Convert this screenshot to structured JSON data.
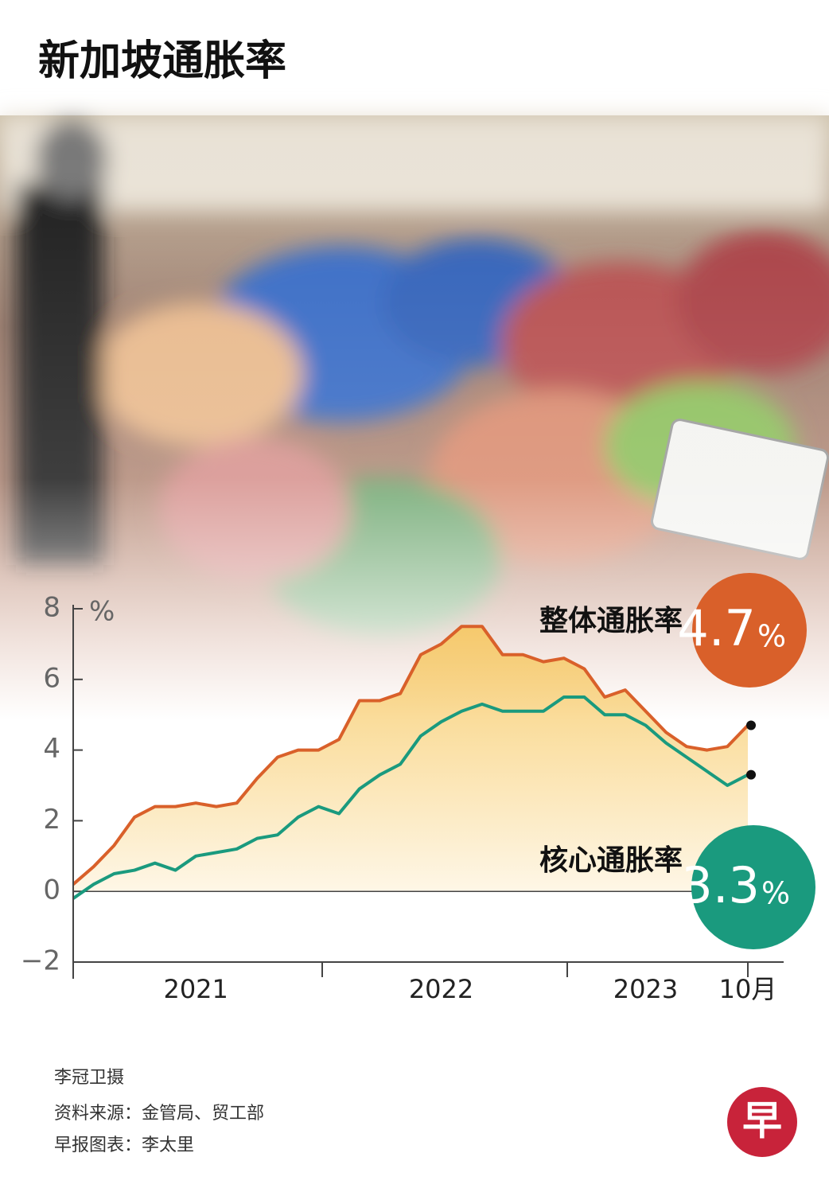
{
  "title": "新加坡通胀率",
  "chart_data": {
    "type": "line",
    "y_unit": "%",
    "categories": [
      null,
      null,
      null,
      null,
      null,
      null,
      "2021",
      null,
      null,
      null,
      null,
      null,
      null,
      null,
      null,
      null,
      null,
      null,
      "2022",
      null,
      null,
      null,
      null,
      null,
      null,
      null,
      null,
      null,
      "2023",
      null,
      null,
      null,
      null,
      "10月"
    ],
    "series": [
      {
        "name": "整体通胀率",
        "color": "#d9602a",
        "values": [
          0.2,
          0.7,
          1.3,
          2.1,
          2.4,
          2.4,
          2.5,
          2.4,
          2.5,
          3.2,
          3.8,
          4.0,
          4.0,
          4.3,
          5.4,
          5.4,
          5.6,
          6.7,
          7.0,
          7.5,
          7.5,
          6.7,
          6.7,
          6.5,
          6.6,
          6.3,
          5.5,
          5.7,
          5.1,
          4.5,
          4.1,
          4.0,
          4.1,
          4.7
        ]
      },
      {
        "name": "核心通胀率",
        "color": "#1a9a7e",
        "values": [
          -0.2,
          0.2,
          0.5,
          0.6,
          0.8,
          0.6,
          1.0,
          1.1,
          1.2,
          1.5,
          1.6,
          2.1,
          2.4,
          2.2,
          2.9,
          3.3,
          3.6,
          4.4,
          4.8,
          5.1,
          5.3,
          5.1,
          5.1,
          5.1,
          5.5,
          5.5,
          5.0,
          5.0,
          4.7,
          4.2,
          3.8,
          3.4,
          3.0,
          3.3
        ]
      }
    ],
    "ylim": [
      -2,
      8
    ],
    "yticks": [
      {
        "value": -2,
        "label": "−2"
      },
      0,
      2,
      4,
      6,
      8
    ],
    "zero_line": true,
    "area_color": "#f7c65a"
  },
  "credits": [
    "李冠卫摄",
    "资料来源：金管局、贸工部",
    "早报图表：李太里"
  ],
  "logo": "早"
}
